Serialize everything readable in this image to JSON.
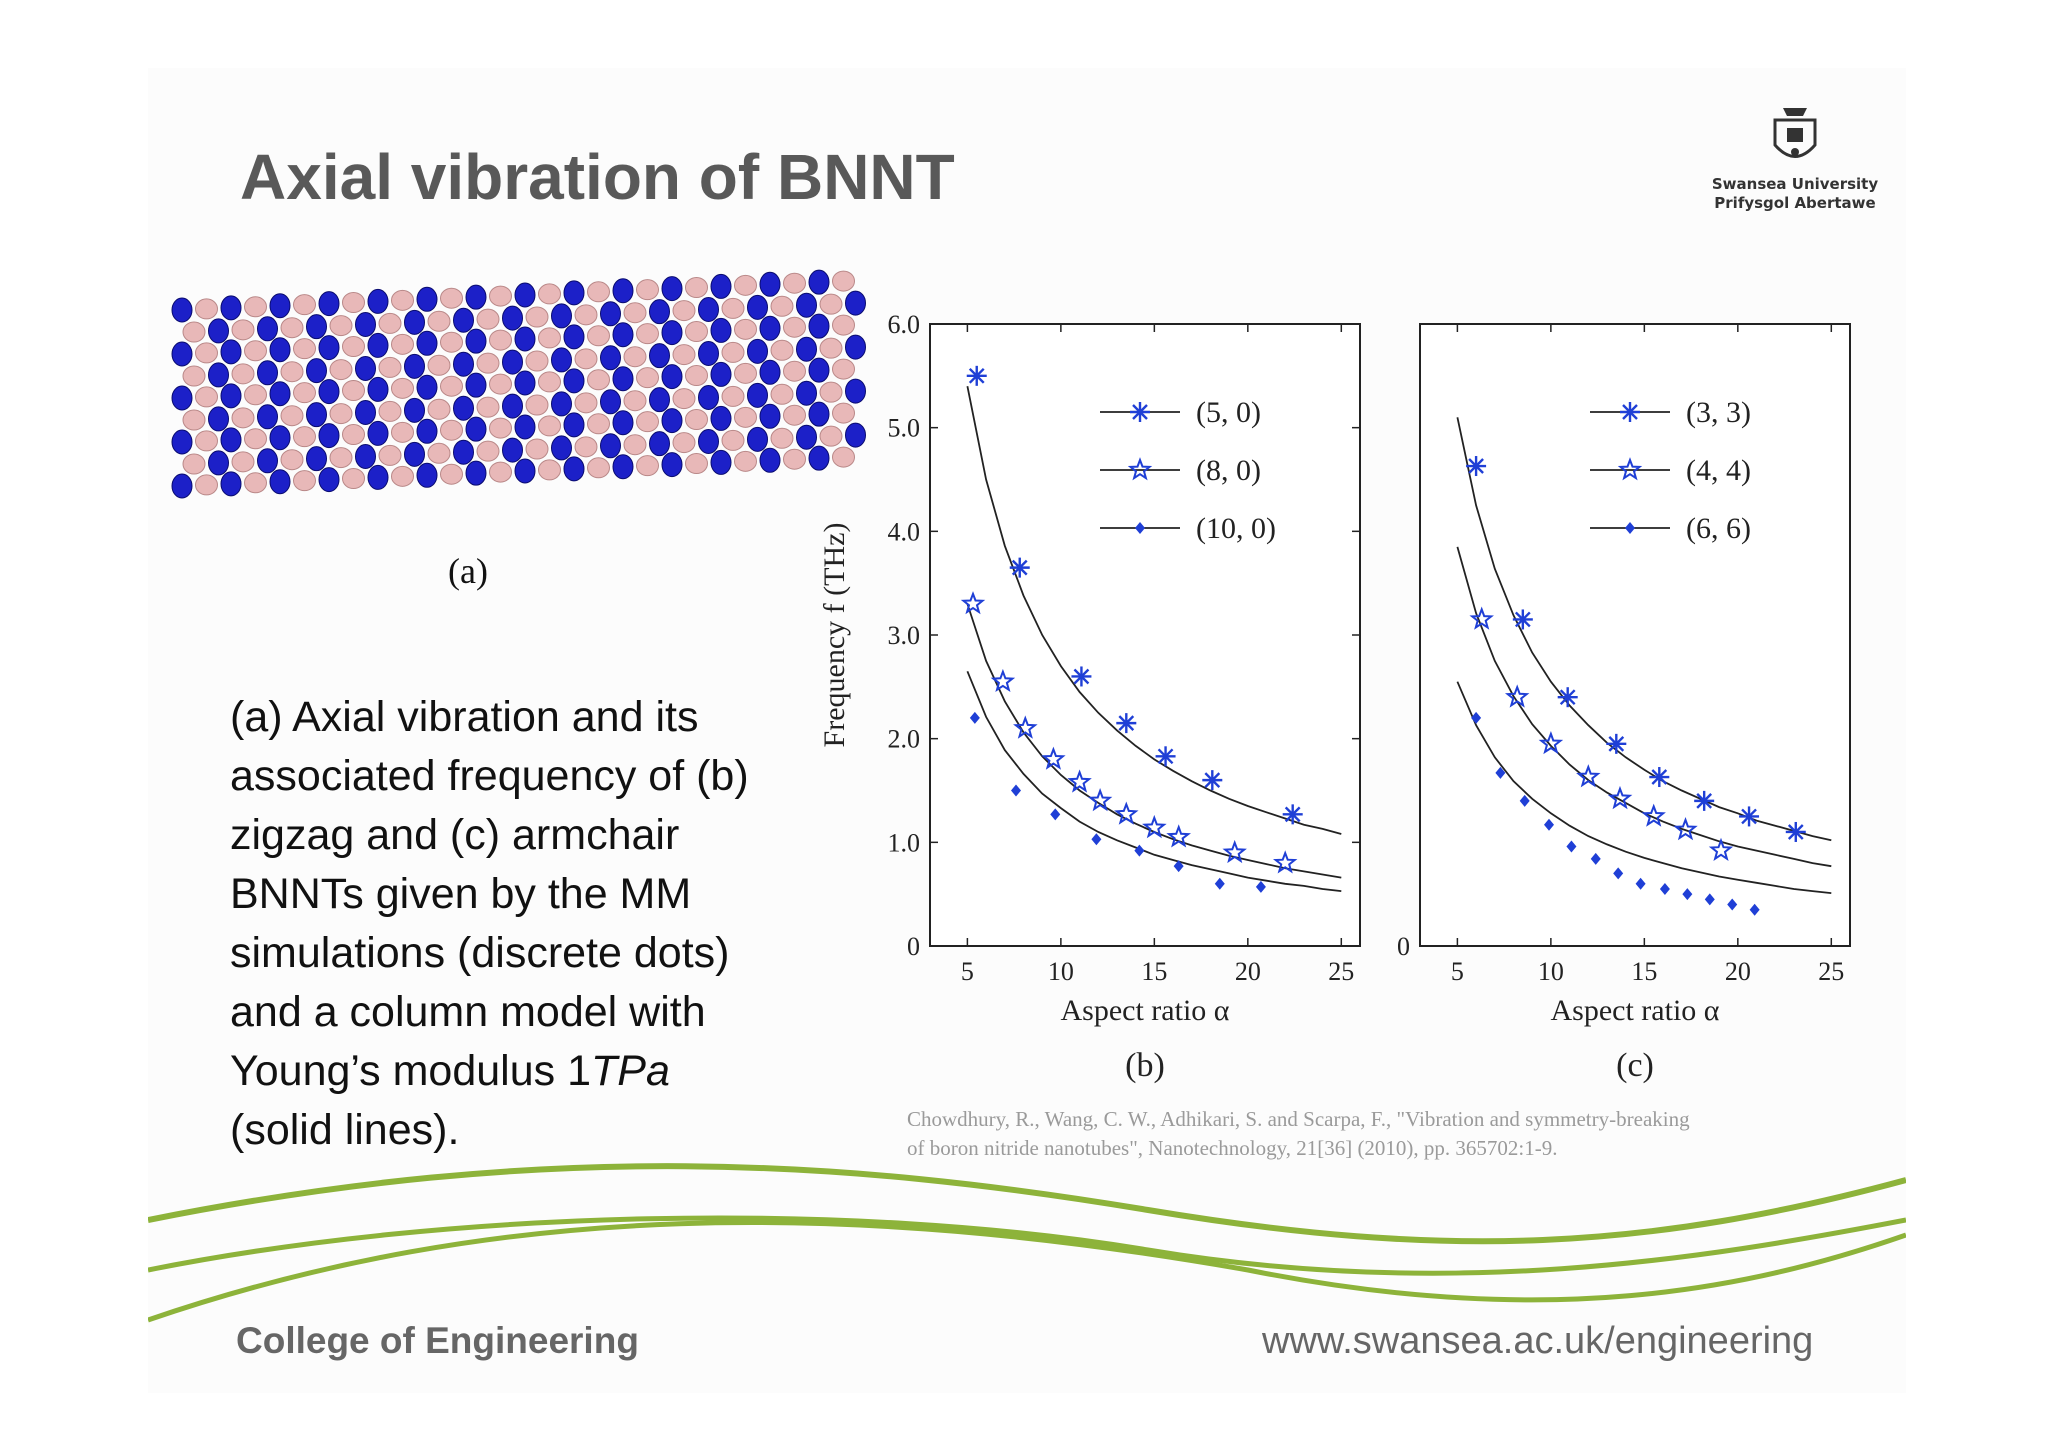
{
  "slide": {
    "title": "Axial vibration of BNNT",
    "logo": {
      "line1": "Swansea University",
      "line2": "Prifysgol Abertawe",
      "icon": "university-crest-icon"
    },
    "figure_a_label": "(a)",
    "description": [
      "(a) Axial vibration and its",
      "associated frequency of  (b)",
      "zigzag and (c) armchair",
      "BNNTs given by the MM",
      "simulations (discrete dots)",
      "and a column model with",
      "Young’s modulus 1",
      "TPa",
      "(solid lines)."
    ],
    "citation": [
      "Chowdhury, R., Wang, C. W., Adhikari, S. and Scarpa, F., \"Vibration and symmetry-breaking",
      "of boron nitride nanotubes\", Nanotechnology, 21[36] (2010), pp. 365702:1-9."
    ],
    "footer_left": "College of Engineering",
    "footer_right": "www.swansea.ac.uk/engineering",
    "colors": {
      "title": "#595959",
      "accent_green": "#8db33a",
      "marker_blue": "#1f3fd6",
      "atom_blue": "#1c20c8",
      "atom_pink": "#e8b8b8"
    }
  },
  "chart_data": [
    {
      "type": "scatter",
      "panel_label": "(b)",
      "xlabel": "Aspect ratio α",
      "ylabel": "Frequency f (THz)",
      "xlim": [
        3,
        26
      ],
      "ylim": [
        0,
        6
      ],
      "xticks": [
        5,
        10,
        15,
        20,
        25
      ],
      "xtick_labels": [
        "5",
        "10",
        "15",
        "20",
        "25"
      ],
      "yticks": [
        0,
        1,
        2,
        3,
        4,
        5,
        6
      ],
      "ytick_labels": [
        "0",
        "1.0",
        "2.0",
        "3.0",
        "4.0",
        "5.0",
        "6.0"
      ],
      "legend_position": "top-right",
      "series": [
        {
          "name": "(5, 0)",
          "marker": "asterisk",
          "x": [
            5.5,
            7.8,
            11.1,
            13.5,
            15.6,
            18.1,
            22.4
          ],
          "y": [
            5.5,
            3.65,
            2.6,
            2.15,
            1.83,
            1.6,
            1.27
          ],
          "curve": {
            "x": [
              5.0,
              6.0,
              7.0,
              8.0,
              9.0,
              10.0,
              11.0,
              12.0,
              13.0,
              14.0,
              15.0,
              16.0,
              17.0,
              18.0,
              19.0,
              20.0,
              21.0,
              22.0,
              23.0,
              24.0,
              25.0
            ],
            "y": [
              5.4,
              4.5,
              3.86,
              3.38,
              3.0,
              2.7,
              2.45,
              2.25,
              2.08,
              1.93,
              1.8,
              1.69,
              1.59,
              1.5,
              1.42,
              1.35,
              1.29,
              1.23,
              1.17,
              1.13,
              1.08
            ]
          }
        },
        {
          "name": "(8, 0)",
          "marker": "star",
          "x": [
            5.3,
            6.9,
            8.1,
            9.6,
            11.0,
            12.1,
            13.5,
            15.0,
            16.3,
            19.3,
            22.0
          ],
          "y": [
            3.3,
            2.55,
            2.1,
            1.8,
            1.58,
            1.4,
            1.27,
            1.14,
            1.05,
            0.9,
            0.8
          ],
          "curve": {
            "x": [
              5.0,
              6.0,
              7.0,
              8.0,
              9.0,
              10.0,
              11.0,
              12.0,
              13.0,
              14.0,
              15.0,
              16.0,
              17.0,
              18.0,
              19.0,
              20.0,
              21.0,
              22.0,
              23.0,
              24.0,
              25.0
            ],
            "y": [
              3.3,
              2.75,
              2.36,
              2.06,
              1.83,
              1.65,
              1.5,
              1.38,
              1.27,
              1.18,
              1.1,
              1.03,
              0.97,
              0.92,
              0.87,
              0.83,
              0.79,
              0.75,
              0.72,
              0.69,
              0.66
            ]
          }
        },
        {
          "name": "(10, 0)",
          "marker": "diamond",
          "x": [
            5.4,
            7.6,
            9.7,
            11.9,
            14.2,
            16.3,
            18.5,
            20.7
          ],
          "y": [
            2.2,
            1.5,
            1.27,
            1.03,
            0.92,
            0.77,
            0.6,
            0.57
          ],
          "curve": {
            "x": [
              5.0,
              6.0,
              7.0,
              8.0,
              9.0,
              10.0,
              11.0,
              12.0,
              13.0,
              14.0,
              15.0,
              16.0,
              17.0,
              18.0,
              19.0,
              20.0,
              21.0,
              22.0,
              23.0,
              24.0,
              25.0
            ],
            "y": [
              2.65,
              2.21,
              1.89,
              1.66,
              1.47,
              1.33,
              1.2,
              1.1,
              1.02,
              0.95,
              0.88,
              0.83,
              0.78,
              0.74,
              0.7,
              0.66,
              0.63,
              0.6,
              0.58,
              0.55,
              0.53
            ]
          }
        }
      ]
    },
    {
      "type": "scatter",
      "panel_label": "(c)",
      "xlabel": "Aspect ratio α",
      "ylabel": "",
      "xlim": [
        3,
        26
      ],
      "ylim": [
        0,
        6
      ],
      "xticks": [
        5,
        10,
        15,
        20,
        25
      ],
      "xtick_labels": [
        "5",
        "10",
        "15",
        "20",
        "25"
      ],
      "yticks": [
        0
      ],
      "ytick_labels": [
        "0"
      ],
      "legend_position": "top-right",
      "series": [
        {
          "name": "(3, 3)",
          "marker": "asterisk",
          "x": [
            6.0,
            8.5,
            10.9,
            13.5,
            15.8,
            18.2,
            20.6,
            23.1
          ],
          "y": [
            4.63,
            3.15,
            2.4,
            1.95,
            1.63,
            1.4,
            1.25,
            1.1
          ],
          "curve": {
            "x": [
              5.0,
              6.0,
              7.0,
              8.0,
              9.0,
              10.0,
              11.0,
              12.0,
              13.0,
              14.0,
              15.0,
              16.0,
              17.0,
              18.0,
              19.0,
              20.0,
              21.0,
              22.0,
              23.0,
              24.0,
              25.0
            ],
            "y": [
              5.1,
              4.25,
              3.64,
              3.19,
              2.83,
              2.55,
              2.32,
              2.13,
              1.96,
              1.82,
              1.7,
              1.59,
              1.5,
              1.42,
              1.34,
              1.28,
              1.21,
              1.16,
              1.11,
              1.06,
              1.02
            ]
          }
        },
        {
          "name": "(4, 4)",
          "marker": "star",
          "x": [
            6.3,
            8.2,
            10.0,
            12.0,
            13.7,
            15.5,
            17.2,
            19.1
          ],
          "y": [
            3.15,
            2.4,
            1.95,
            1.63,
            1.42,
            1.25,
            1.12,
            0.92
          ],
          "curve": {
            "x": [
              5.0,
              6.0,
              7.0,
              8.0,
              9.0,
              10.0,
              11.0,
              12.0,
              13.0,
              14.0,
              15.0,
              16.0,
              17.0,
              18.0,
              19.0,
              20.0,
              21.0,
              22.0,
              23.0,
              24.0,
              25.0
            ],
            "y": [
              3.85,
              3.21,
              2.75,
              2.41,
              2.14,
              1.93,
              1.75,
              1.6,
              1.48,
              1.38,
              1.28,
              1.2,
              1.13,
              1.07,
              1.01,
              0.96,
              0.92,
              0.88,
              0.84,
              0.8,
              0.77
            ]
          }
        },
        {
          "name": "(6, 6)",
          "marker": "diamond",
          "x": [
            6.0,
            7.3,
            8.6,
            9.9,
            11.1,
            12.4,
            13.6,
            14.8,
            16.1,
            17.3,
            18.5,
            19.7,
            20.9
          ],
          "y": [
            2.2,
            1.67,
            1.4,
            1.17,
            0.96,
            0.84,
            0.7,
            0.6,
            0.55,
            0.5,
            0.45,
            0.4,
            0.35
          ],
          "curve": {
            "x": [
              5.0,
              6.0,
              7.0,
              8.0,
              9.0,
              10.0,
              11.0,
              12.0,
              13.0,
              14.0,
              15.0,
              16.0,
              17.0,
              18.0,
              19.0,
              20.0,
              21.0,
              22.0,
              23.0,
              24.0,
              25.0
            ],
            "y": [
              2.55,
              2.13,
              1.82,
              1.59,
              1.42,
              1.28,
              1.16,
              1.06,
              0.98,
              0.91,
              0.85,
              0.8,
              0.75,
              0.71,
              0.67,
              0.64,
              0.61,
              0.58,
              0.55,
              0.53,
              0.51
            ]
          }
        }
      ]
    }
  ]
}
